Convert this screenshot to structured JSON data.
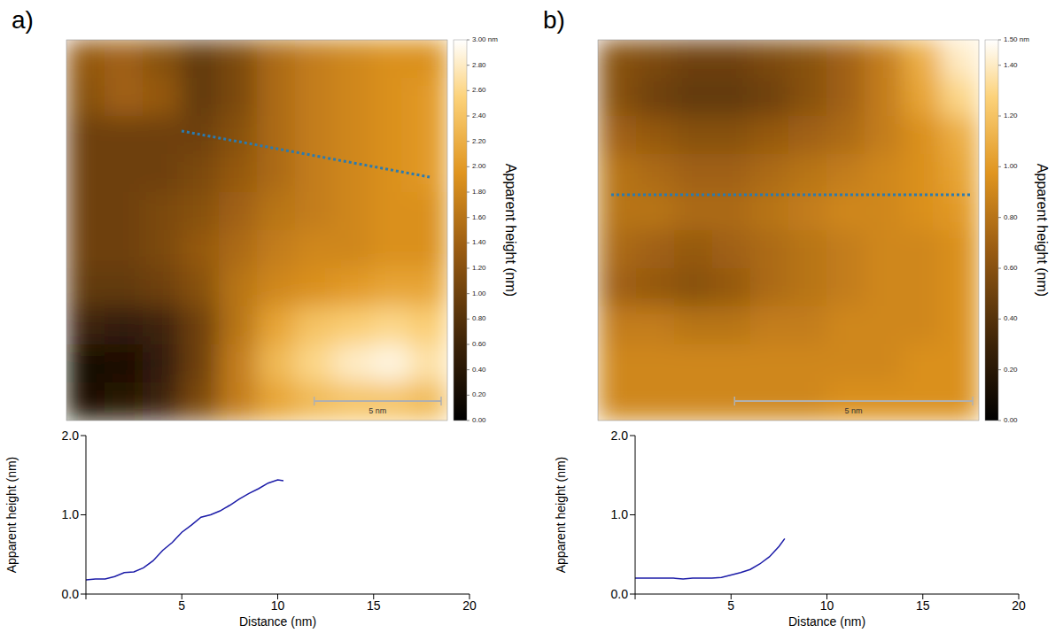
{
  "chart_data": [
    {
      "type": "heatmap",
      "panel": "a)",
      "xlim": [
        0,
        15
      ],
      "cells": [
        [
          1.3,
          1.4,
          1.2,
          0.9,
          1.1,
          1.5,
          1.7,
          1.8,
          1.9,
          1.9
        ],
        [
          1.2,
          1.4,
          1.3,
          0.9,
          1.1,
          1.5,
          1.7,
          1.8,
          1.9,
          2.0
        ],
        [
          1.0,
          1.0,
          1.0,
          1.0,
          1.2,
          1.5,
          1.7,
          1.8,
          1.9,
          2.0
        ],
        [
          1.0,
          1.0,
          1.0,
          1.1,
          1.3,
          1.5,
          1.7,
          1.8,
          1.9,
          2.0
        ],
        [
          1.0,
          1.0,
          1.1,
          1.2,
          1.4,
          1.6,
          1.7,
          1.8,
          1.9,
          1.9
        ],
        [
          1.0,
          1.0,
          1.1,
          1.3,
          1.5,
          1.7,
          1.8,
          1.8,
          1.9,
          1.9
        ],
        [
          0.9,
          0.9,
          1.0,
          1.2,
          1.6,
          1.8,
          1.9,
          2.0,
          2.1,
          2.1
        ],
        [
          0.6,
          0.5,
          0.6,
          1.0,
          1.6,
          2.1,
          2.4,
          2.5,
          2.6,
          2.5
        ],
        [
          0.2,
          0.3,
          0.5,
          1.0,
          1.7,
          2.3,
          2.6,
          2.8,
          2.9,
          2.7
        ],
        [
          0.3,
          0.4,
          0.6,
          1.1,
          1.7,
          2.1,
          2.3,
          2.4,
          2.4,
          2.3
        ]
      ],
      "colorbar_lim": [
        0,
        3
      ],
      "colorbar_ticks": [
        {
          "value": 0,
          "label": "0.00"
        },
        {
          "value": 0.2,
          "label": "0.20"
        },
        {
          "value": 0.4,
          "label": "0.40"
        },
        {
          "value": 0.6,
          "label": "0.60"
        },
        {
          "value": 0.8,
          "label": "0.80"
        },
        {
          "value": 1,
          "label": "1.00"
        },
        {
          "value": 1.2,
          "label": "1.20"
        },
        {
          "value": 1.4,
          "label": "1.40"
        },
        {
          "value": 1.6,
          "label": "1.60"
        },
        {
          "value": 1.8,
          "label": "1.80"
        },
        {
          "value": 2,
          "label": "2.00"
        },
        {
          "value": 2.2,
          "label": "2.20"
        },
        {
          "value": 2.4,
          "label": "2.40"
        },
        {
          "value": 2.6,
          "label": "2.60"
        },
        {
          "value": 2.8,
          "label": "2.80"
        },
        {
          "value": 3,
          "label": "3.00 nm"
        }
      ],
      "colorbar_label": "Apparent height (nm)",
      "scale_bar": {
        "value": 5,
        "label": "5 nm"
      }
    },
    {
      "type": "heatmap",
      "panel": "b)",
      "xlim": [
        0,
        8
      ],
      "cells": [
        [
          0.6,
          0.55,
          0.5,
          0.5,
          0.55,
          0.6,
          0.7,
          0.85,
          1.1,
          1.4
        ],
        [
          0.6,
          0.5,
          0.45,
          0.45,
          0.5,
          0.6,
          0.7,
          0.85,
          1.05,
          1.3
        ],
        [
          0.7,
          0.65,
          0.6,
          0.6,
          0.65,
          0.7,
          0.75,
          0.85,
          0.95,
          1.1
        ],
        [
          0.8,
          0.75,
          0.7,
          0.7,
          0.75,
          0.8,
          0.85,
          0.9,
          0.95,
          1.05
        ],
        [
          0.8,
          0.8,
          0.75,
          0.75,
          0.8,
          0.85,
          0.9,
          0.9,
          0.95,
          1.0
        ],
        [
          0.75,
          0.7,
          0.65,
          0.7,
          0.75,
          0.8,
          0.85,
          0.9,
          0.9,
          0.95
        ],
        [
          0.7,
          0.65,
          0.6,
          0.65,
          0.75,
          0.8,
          0.85,
          0.9,
          0.9,
          0.95
        ],
        [
          0.85,
          0.85,
          0.8,
          0.8,
          0.85,
          0.85,
          0.9,
          0.9,
          0.9,
          0.95
        ],
        [
          0.9,
          0.9,
          0.9,
          0.9,
          0.9,
          0.9,
          0.9,
          0.9,
          0.95,
          0.95
        ],
        [
          0.9,
          0.9,
          0.9,
          0.9,
          0.9,
          0.9,
          0.95,
          0.95,
          0.95,
          0.95
        ]
      ],
      "colorbar_lim": [
        0,
        1.5
      ],
      "colorbar_ticks": [
        {
          "value": 0,
          "label": "0.00"
        },
        {
          "value": 0.2,
          "label": "0.20"
        },
        {
          "value": 0.4,
          "label": "0.40"
        },
        {
          "value": 0.6,
          "label": "0.60"
        },
        {
          "value": 0.8,
          "label": "0.80"
        },
        {
          "value": 1,
          "label": "1.00"
        },
        {
          "value": 1.2,
          "label": "1.20"
        },
        {
          "value": 1.4,
          "label": "1.40"
        },
        {
          "value": 1.5,
          "label": "1.50 nm"
        }
      ],
      "colorbar_label": "Apparent height (nm)",
      "scale_bar": {
        "value": 5,
        "label": "5 nm"
      }
    },
    {
      "type": "line",
      "color": "#1c1ca8",
      "x": [
        0,
        0.5,
        1,
        1.5,
        2,
        2.5,
        3,
        3.5,
        4,
        4.5,
        5,
        5.5,
        6,
        6.5,
        7,
        7.5,
        8,
        8.5,
        9,
        9.5,
        10,
        10.3
      ],
      "values": [
        0.18,
        0.19,
        0.19,
        0.22,
        0.27,
        0.28,
        0.33,
        0.42,
        0.55,
        0.65,
        0.78,
        0.87,
        0.97,
        1.0,
        1.05,
        1.12,
        1.2,
        1.27,
        1.33,
        1.4,
        1.44,
        1.43
      ],
      "xlim": [
        0,
        20
      ],
      "xticks": [
        0,
        5,
        10,
        15,
        20
      ],
      "ylim": [
        0,
        2
      ],
      "yticks": [
        {
          "value": 0,
          "label": "0.0"
        },
        {
          "value": 1,
          "label": "1.0"
        },
        {
          "value": 2,
          "label": "2.0"
        }
      ],
      "xlabel": "Distance (nm)",
      "ylabel": "Apparent height (nm)"
    },
    {
      "type": "line",
      "color": "#1c1ca8",
      "x": [
        0,
        0.5,
        1,
        1.5,
        2,
        2.5,
        3,
        3.5,
        4,
        4.5,
        5,
        5.5,
        6,
        6.5,
        7,
        7.5,
        7.8
      ],
      "values": [
        0.2,
        0.2,
        0.2,
        0.2,
        0.2,
        0.19,
        0.2,
        0.2,
        0.2,
        0.21,
        0.24,
        0.27,
        0.31,
        0.38,
        0.47,
        0.6,
        0.7
      ],
      "xlim": [
        0,
        20
      ],
      "xticks": [
        0,
        5,
        10,
        15,
        20
      ],
      "ylim": [
        0,
        2
      ],
      "yticks": [
        {
          "value": 0,
          "label": "0.0"
        },
        {
          "value": 1,
          "label": "1.0"
        },
        {
          "value": 2,
          "label": "2.0"
        }
      ],
      "xlabel": "Distance (nm)",
      "ylabel": "Apparent height (nm)"
    }
  ]
}
